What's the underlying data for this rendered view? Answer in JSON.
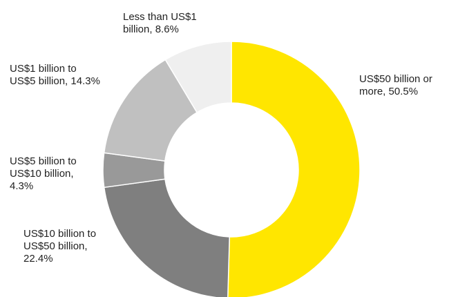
{
  "chart_data": {
    "type": "pie",
    "variant": "donut",
    "start_angle_deg": 0,
    "direction": "clockwise",
    "slices": [
      {
        "label_lines": [
          "US$50 billion or",
          "more, 50.5%"
        ],
        "category": "US$50 billion or more",
        "value": 50.5,
        "color": "#FFE600"
      },
      {
        "label_lines": [
          "US$10 billion to",
          "US$50 billion,",
          "22.4%"
        ],
        "category": "US$10 billion to US$50 billion",
        "value": 22.4,
        "color": "#7F7F7F"
      },
      {
        "label_lines": [
          "US$5 billion to",
          "US$10 billion,",
          "4.3%"
        ],
        "category": "US$5 billion to US$10 billion",
        "value": 4.3,
        "color": "#999999"
      },
      {
        "label_lines": [
          "US$1 billion to",
          "US$5 billion, 14.3%"
        ],
        "category": "US$1 billion to US$5 billion",
        "value": 14.3,
        "color": "#C0C0C0"
      },
      {
        "label_lines": [
          "Less than US$1",
          "billion, 8.6%"
        ],
        "category": "Less than US$1 billion",
        "value": 8.6,
        "color": "#EFEFEF"
      }
    ]
  }
}
